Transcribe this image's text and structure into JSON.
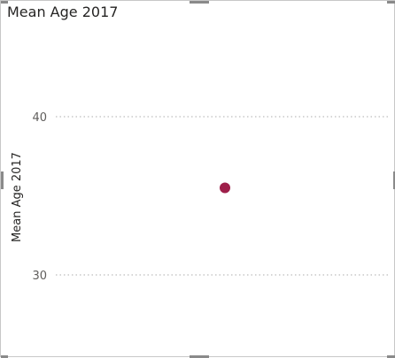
{
  "chart_data": {
    "type": "scatter",
    "title": "Mean Age 2017",
    "xlabel": "",
    "ylabel": "Mean Age 2017",
    "ylim": [
      30,
      40
    ],
    "yticks": [
      30,
      40
    ],
    "grid": true,
    "points": [
      {
        "y": 35.5
      }
    ],
    "marker_color": "#9e1f4a",
    "gridline_color": "#c8c8c8"
  }
}
